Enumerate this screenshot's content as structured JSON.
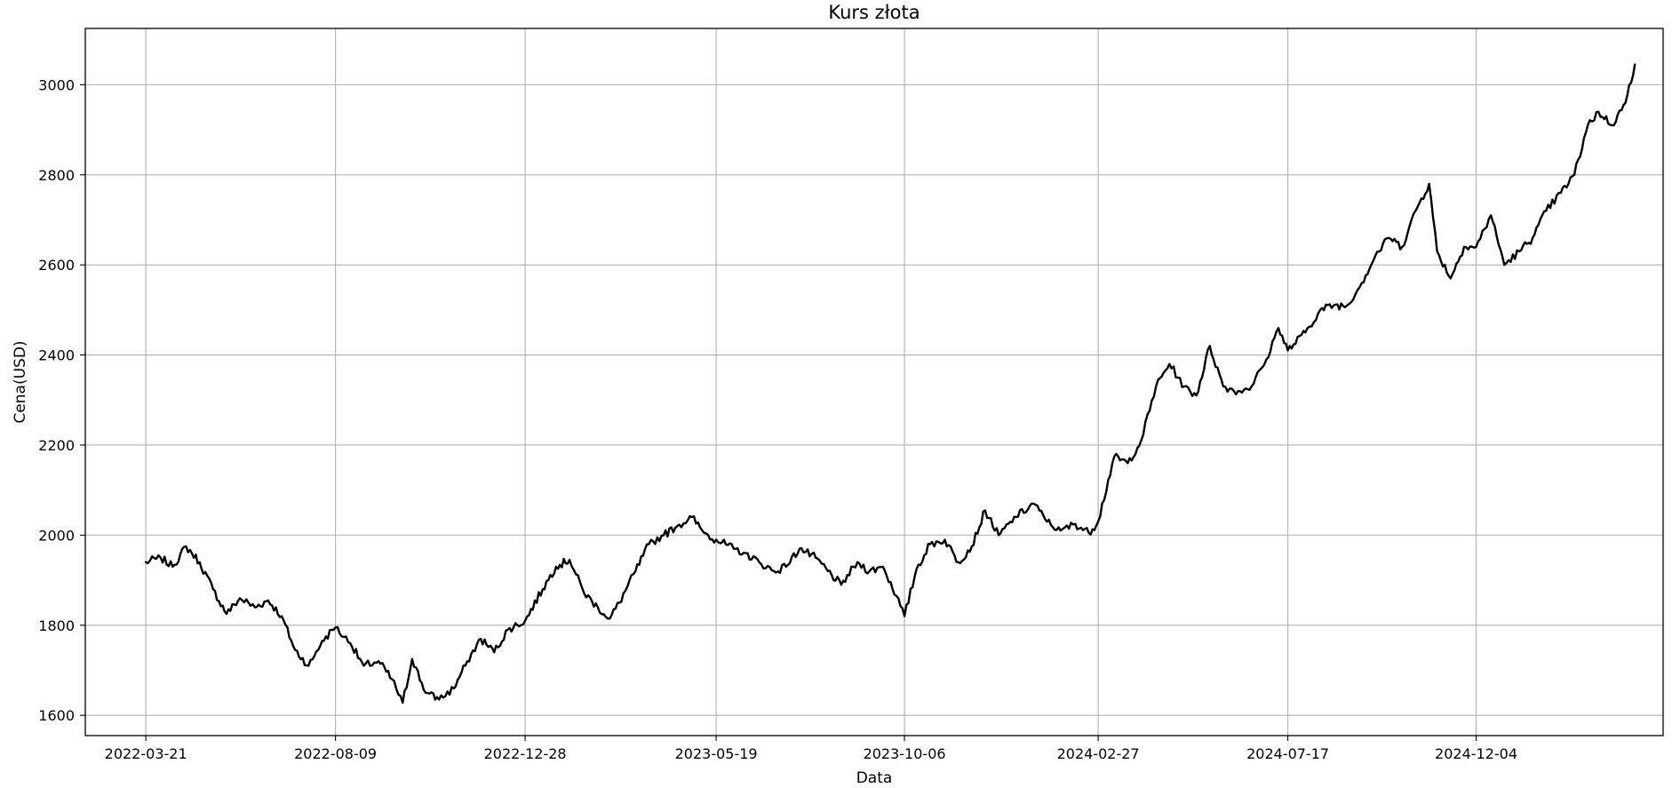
{
  "chart_data": {
    "type": "line",
    "title": "Kurs złota",
    "xlabel": "Data",
    "ylabel": "Cena(USD)",
    "x_ticks": [
      "2022-03-21",
      "2022-08-09",
      "2022-12-28",
      "2023-05-19",
      "2023-10-06",
      "2024-02-27",
      "2024-07-17",
      "2024-12-04"
    ],
    "y_ticks": [
      1600,
      1800,
      2000,
      2200,
      2400,
      2600,
      2800,
      3000
    ],
    "xlim": [
      "2022-02-04",
      "2025-04-22"
    ],
    "ylim": [
      1555,
      3125
    ],
    "grid": true,
    "series": [
      {
        "color": "#000000",
        "x": [
          "2022-03-21",
          "2022-04-01",
          "2022-04-10",
          "2022-04-20",
          "2022-04-30",
          "2022-05-10",
          "2022-05-20",
          "2022-05-30",
          "2022-06-10",
          "2022-06-20",
          "2022-06-30",
          "2022-07-10",
          "2022-07-20",
          "2022-07-30",
          "2022-08-09",
          "2022-08-20",
          "2022-08-30",
          "2022-09-10",
          "2022-09-20",
          "2022-09-28",
          "2022-10-05",
          "2022-10-15",
          "2022-10-25",
          "2022-11-05",
          "2022-11-15",
          "2022-11-25",
          "2022-12-05",
          "2022-12-15",
          "2022-12-28",
          "2023-01-10",
          "2023-01-20",
          "2023-01-30",
          "2023-02-10",
          "2023-02-20",
          "2023-03-01",
          "2023-03-08",
          "2023-03-20",
          "2023-03-30",
          "2023-04-10",
          "2023-04-20",
          "2023-05-01",
          "2023-05-10",
          "2023-05-19",
          "2023-06-01",
          "2023-06-10",
          "2023-06-20",
          "2023-07-01",
          "2023-07-10",
          "2023-07-20",
          "2023-08-01",
          "2023-08-10",
          "2023-08-20",
          "2023-09-01",
          "2023-09-10",
          "2023-09-20",
          "2023-09-30",
          "2023-10-06",
          "2023-10-15",
          "2023-10-25",
          "2023-11-05",
          "2023-11-15",
          "2023-11-25",
          "2023-12-05",
          "2023-12-15",
          "2023-12-28",
          "2024-01-10",
          "2024-01-20",
          "2024-01-30",
          "2024-02-10",
          "2024-02-20",
          "2024-02-27",
          "2024-03-10",
          "2024-03-20",
          "2024-03-30",
          "2024-04-10",
          "2024-04-20",
          "2024-05-01",
          "2024-05-10",
          "2024-05-20",
          "2024-05-30",
          "2024-06-10",
          "2024-06-20",
          "2024-07-01",
          "2024-07-10",
          "2024-07-17",
          "2024-07-30",
          "2024-08-10",
          "2024-08-20",
          "2024-08-30",
          "2024-09-10",
          "2024-09-20",
          "2024-09-30",
          "2024-10-10",
          "2024-10-20",
          "2024-10-30",
          "2024-11-05",
          "2024-11-15",
          "2024-11-25",
          "2024-12-04",
          "2024-12-15",
          "2024-12-25",
          "2025-01-05",
          "2025-01-15",
          "2025-01-25",
          "2025-02-05",
          "2025-02-15",
          "2025-02-25",
          "2025-03-05",
          "2025-03-15",
          "2025-03-25",
          "2025-04-01"
        ],
        "y": [
          1940,
          1950,
          1930,
          1975,
          1940,
          1880,
          1825,
          1860,
          1840,
          1855,
          1820,
          1745,
          1710,
          1765,
          1795,
          1760,
          1710,
          1720,
          1680,
          1628,
          1725,
          1650,
          1635,
          1660,
          1720,
          1770,
          1740,
          1790,
          1810,
          1880,
          1930,
          1945,
          1870,
          1840,
          1815,
          1850,
          1920,
          1980,
          2000,
          2020,
          2040,
          2005,
          1990,
          1970,
          1960,
          1940,
          1920,
          1930,
          1970,
          1950,
          1920,
          1890,
          1940,
          1920,
          1930,
          1865,
          1820,
          1925,
          1980,
          1990,
          1940,
          1975,
          2055,
          2000,
          2040,
          2070,
          2030,
          2010,
          2025,
          2005,
          2030,
          2175,
          2160,
          2210,
          2330,
          2380,
          2330,
          2310,
          2420,
          2330,
          2320,
          2330,
          2390,
          2460,
          2410,
          2450,
          2500,
          2510,
          2510,
          2560,
          2620,
          2660,
          2640,
          2720,
          2780,
          2630,
          2570,
          2640,
          2640,
          2710,
          2600,
          2630,
          2660,
          2720,
          2760,
          2800,
          2910,
          2940,
          2910,
          2960,
          3045
        ]
      }
    ]
  }
}
